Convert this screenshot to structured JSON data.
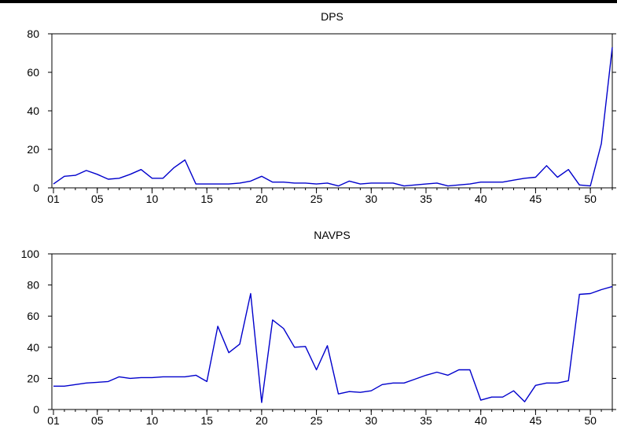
{
  "chart_data": [
    {
      "type": "line",
      "title": "DPS",
      "xlabel": "",
      "ylabel": "",
      "ylim": [
        0,
        80
      ],
      "yticks": [
        0,
        20,
        40,
        60,
        80
      ],
      "xlim": [
        1,
        52
      ],
      "xticks": [
        1,
        5,
        10,
        15,
        20,
        25,
        30,
        35,
        40,
        45,
        50
      ],
      "xtick_labels": [
        "01",
        "05",
        "10",
        "15",
        "20",
        "25",
        "30",
        "35",
        "40",
        "45",
        "50"
      ],
      "grid": false,
      "line_color": "#0000cc",
      "x": [
        1,
        2,
        3,
        4,
        5,
        6,
        7,
        8,
        9,
        10,
        11,
        12,
        13,
        14,
        15,
        16,
        17,
        18,
        19,
        20,
        21,
        22,
        23,
        24,
        25,
        26,
        27,
        28,
        29,
        30,
        31,
        32,
        33,
        34,
        35,
        36,
        37,
        38,
        39,
        40,
        41,
        42,
        43,
        44,
        45,
        46,
        47,
        48,
        49,
        50,
        51,
        52
      ],
      "values": [
        2,
        6,
        6.5,
        9,
        7,
        4.5,
        5,
        7,
        9.5,
        5,
        5,
        10.5,
        14.5,
        2,
        2,
        2,
        2,
        2.5,
        3.5,
        6,
        3,
        3,
        2.5,
        2.5,
        2,
        2.5,
        1,
        3.5,
        2,
        2.5,
        2.5,
        2.5,
        1,
        1.5,
        2,
        2.5,
        1,
        1.5,
        2,
        3,
        3,
        3,
        4,
        5,
        5.5,
        11.5,
        5.5,
        9.5,
        1.5,
        1,
        23,
        73
      ]
    },
    {
      "type": "line",
      "title": "NAVPS",
      "xlabel": "",
      "ylabel": "",
      "ylim": [
        0,
        100
      ],
      "yticks": [
        0,
        20,
        40,
        60,
        80,
        100
      ],
      "xlim": [
        1,
        52
      ],
      "xticks": [
        1,
        5,
        10,
        15,
        20,
        25,
        30,
        35,
        40,
        45,
        50
      ],
      "xtick_labels": [
        "01",
        "05",
        "10",
        "15",
        "20",
        "25",
        "30",
        "35",
        "40",
        "45",
        "50"
      ],
      "grid": false,
      "line_color": "#0000cc",
      "x": [
        1,
        2,
        3,
        4,
        5,
        6,
        7,
        8,
        9,
        10,
        11,
        12,
        13,
        14,
        15,
        16,
        17,
        18,
        19,
        20,
        21,
        22,
        23,
        24,
        25,
        26,
        27,
        28,
        29,
        30,
        31,
        32,
        33,
        34,
        35,
        36,
        37,
        38,
        39,
        40,
        41,
        42,
        43,
        44,
        45,
        46,
        47,
        48,
        49,
        50,
        51,
        52
      ],
      "values": [
        15,
        15,
        16,
        17,
        17.5,
        18,
        21,
        20,
        20.5,
        20.5,
        21,
        21,
        21,
        22,
        18,
        53.5,
        36.5,
        42,
        74.5,
        4.5,
        57.5,
        52,
        40,
        40.5,
        25.5,
        41,
        10,
        11.5,
        11,
        12,
        16,
        17,
        17,
        19.5,
        22,
        24,
        22,
        25.5,
        25.5,
        6,
        8,
        8,
        12,
        5,
        15.5,
        17,
        17,
        18.5,
        74,
        74.5,
        77,
        79
      ]
    }
  ]
}
